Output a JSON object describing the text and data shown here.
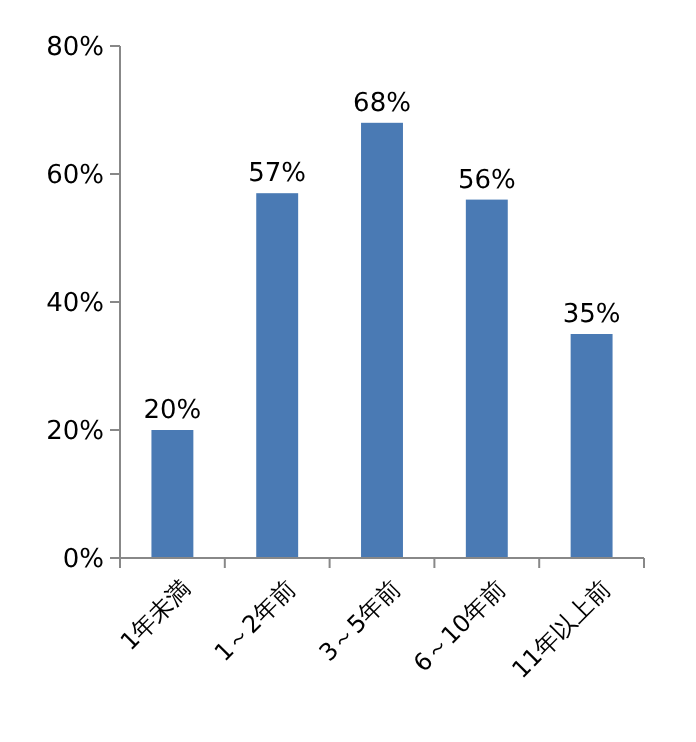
{
  "chart_data": {
    "type": "bar",
    "categories": [
      "1年未満",
      "1～2年前",
      "3～5年前",
      "6～10年前",
      "11年以上前"
    ],
    "values": [
      20,
      57,
      68,
      56,
      35
    ],
    "value_labels": [
      "20%",
      "57%",
      "68%",
      "56%",
      "35%"
    ],
    "color": "#4a7ab4",
    "ylim": [
      0,
      80
    ],
    "yticks": [
      {
        "value": 0,
        "label": "0%"
      },
      {
        "value": 20,
        "label": "20%"
      },
      {
        "value": 40,
        "label": "40%"
      },
      {
        "value": 60,
        "label": "60%"
      },
      {
        "value": 80,
        "label": "80%"
      }
    ],
    "grid": false
  }
}
